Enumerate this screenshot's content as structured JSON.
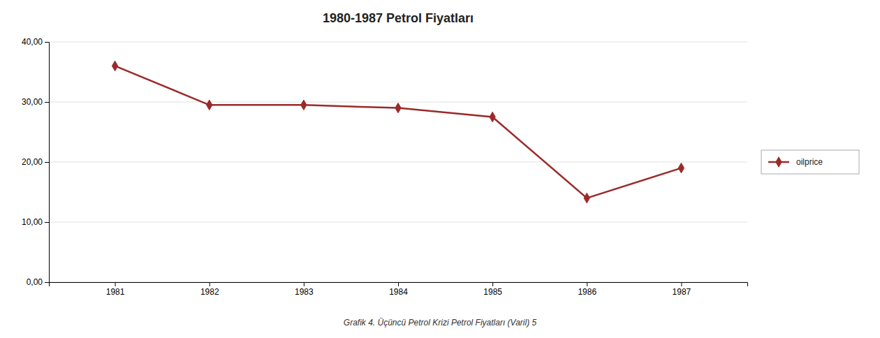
{
  "chart_data": {
    "type": "line",
    "title": "1980-1987 Petrol Fiyatları",
    "caption": "Grafik 4. Üçüncü Petrol Krizi Petrol Fiyatları (Varil) 5",
    "x": [
      1981,
      1982,
      1983,
      1984,
      1985,
      1986,
      1987
    ],
    "series": [
      {
        "name": "oilprice",
        "color": "#9B2A2A",
        "marker": "diamond",
        "values": [
          36.0,
          29.5,
          29.5,
          29.0,
          27.5,
          14.0,
          19.0
        ]
      }
    ],
    "xlim": [
      1980.3,
      1987.7
    ],
    "xticks": [
      1981,
      1982,
      1983,
      1984,
      1985,
      1986,
      1987
    ],
    "ylim": [
      0,
      40
    ],
    "yticks": [
      {
        "value": 0,
        "label": "0,00"
      },
      {
        "value": 10,
        "label": "10,00"
      },
      {
        "value": 20,
        "label": "20,00"
      },
      {
        "value": 30,
        "label": "30,00"
      },
      {
        "value": 40,
        "label": "40,00"
      }
    ],
    "grid": true,
    "legend": "right"
  }
}
